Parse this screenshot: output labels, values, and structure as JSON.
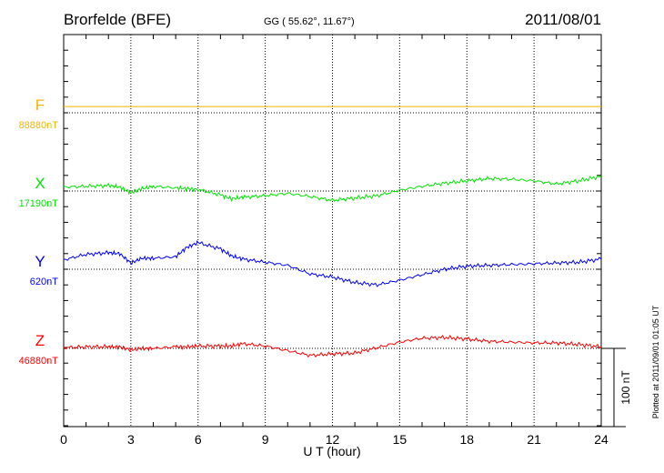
{
  "chart_data": {
    "type": "line",
    "title": "Brorfelde (BFE)",
    "subtitle": "GG ( 55.62°,  11.67°)",
    "date": "2011/08/01",
    "xlabel": "U T (hour)",
    "xlim": [
      0,
      24
    ],
    "xticks": [
      "0",
      "3",
      "6",
      "9",
      "12",
      "15",
      "18",
      "21",
      "24"
    ],
    "grid": true,
    "scale_bar_label": "100 nT",
    "footer": "Plotted at 2011/09/01 01:05 UT",
    "x": [
      0,
      1,
      2,
      2.5,
      3,
      3.5,
      4,
      5,
      5.5,
      6,
      7,
      7.5,
      8,
      9,
      10,
      11,
      12,
      13,
      14,
      15,
      16,
      17,
      18,
      19,
      20,
      21,
      22,
      23,
      24
    ],
    "series": [
      {
        "name": "F",
        "baseline_label": "88880nT",
        "color": "#f5b400",
        "values": [
          8,
          8,
          8,
          8,
          8,
          8,
          8,
          8,
          8,
          8,
          8,
          8,
          8,
          8,
          8,
          8,
          8,
          8,
          8,
          8,
          8,
          8,
          8,
          8,
          8,
          8,
          8,
          8,
          8
        ]
      },
      {
        "name": "X",
        "baseline_label": "17190nT",
        "color": "#00e600",
        "values": [
          5,
          6,
          7,
          5,
          -2,
          3,
          6,
          4,
          3,
          2,
          -5,
          -10,
          -8,
          -6,
          -3,
          -7,
          -12,
          -9,
          -6,
          1,
          6,
          10,
          13,
          16,
          15,
          13,
          9,
          13,
          19
        ]
      },
      {
        "name": "Y",
        "baseline_label": "620nT",
        "color": "#0000ff",
        "values": [
          12,
          19,
          21,
          20,
          8,
          14,
          14,
          16,
          28,
          34,
          26,
          17,
          13,
          9,
          5,
          -6,
          -10,
          -17,
          -20,
          -14,
          -7,
          0,
          4,
          5,
          6,
          7,
          8,
          9,
          13
        ]
      },
      {
        "name": "Z",
        "baseline_label": "46880nT",
        "color": "#ff0000",
        "values": [
          1,
          2,
          2,
          2,
          -2,
          0,
          0,
          2,
          2,
          3,
          3,
          3,
          6,
          3,
          -3,
          -9,
          -7,
          -6,
          1,
          8,
          13,
          14,
          12,
          9,
          8,
          7,
          7,
          5,
          2
        ]
      }
    ]
  }
}
